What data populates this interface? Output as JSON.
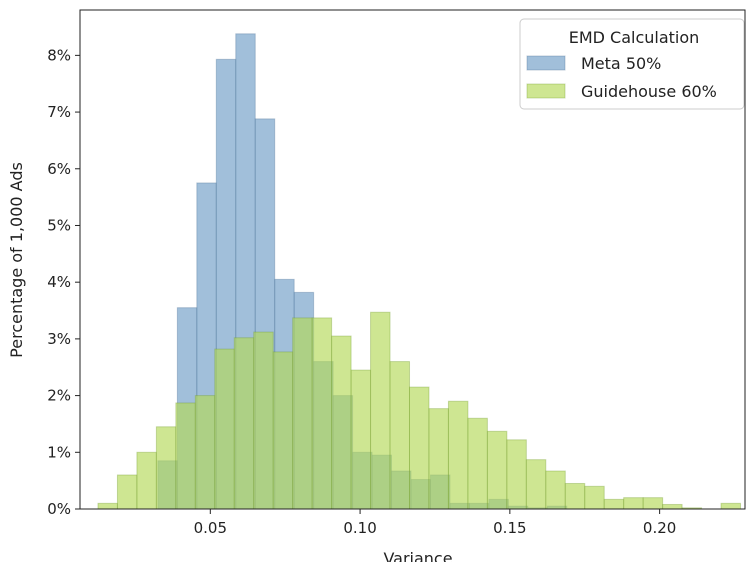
{
  "chart_data": {
    "type": "bar",
    "xlabel": "Variance",
    "ylabel": "Percentage of 1,000 Ads",
    "xlim": [
      0.0065,
      0.2285
    ],
    "ylim": [
      0,
      8.8
    ],
    "xticks": [
      {
        "value": 0.05,
        "label": "0.05"
      },
      {
        "value": 0.1,
        "label": "0.10"
      },
      {
        "value": 0.15,
        "label": "0.15"
      },
      {
        "value": 0.2,
        "label": "0.20"
      }
    ],
    "yticks": [
      {
        "value": 0,
        "label": "0%"
      },
      {
        "value": 1,
        "label": "1%"
      },
      {
        "value": 2,
        "label": "2%"
      },
      {
        "value": 3,
        "label": "3%"
      },
      {
        "value": 4,
        "label": "4%"
      },
      {
        "value": 5,
        "label": "5%"
      },
      {
        "value": 6,
        "label": "6%"
      },
      {
        "value": 7,
        "label": "7%"
      },
      {
        "value": 8,
        "label": "8%"
      }
    ],
    "bin_width": 0.0065,
    "legend": {
      "title": "EMD Calculation",
      "position": "top-right"
    },
    "series": [
      {
        "name": "Meta 50%",
        "color": "#6f9dc6",
        "bins": [
          [
            0.0325,
            0.85
          ],
          [
            0.039,
            3.55
          ],
          [
            0.0455,
            5.75
          ],
          [
            0.052,
            7.93
          ],
          [
            0.0585,
            8.38
          ],
          [
            0.065,
            6.88
          ],
          [
            0.0715,
            4.05
          ],
          [
            0.078,
            3.82
          ],
          [
            0.0845,
            2.6
          ],
          [
            0.091,
            2.0
          ],
          [
            0.0975,
            1.0
          ],
          [
            0.104,
            0.95
          ],
          [
            0.1105,
            0.67
          ],
          [
            0.117,
            0.52
          ],
          [
            0.1235,
            0.6
          ],
          [
            0.13,
            0.1
          ],
          [
            0.1365,
            0.1
          ],
          [
            0.143,
            0.17
          ],
          [
            0.1495,
            0.05
          ],
          [
            0.156,
            0.02
          ],
          [
            0.1625,
            0.05
          ]
        ]
      },
      {
        "name": "Guidehouse 60%",
        "color": "#b3d957",
        "bins": [
          [
            0.0125,
            0.1
          ],
          [
            0.019,
            0.6
          ],
          [
            0.0255,
            1.0
          ],
          [
            0.032,
            1.45
          ],
          [
            0.0385,
            1.87
          ],
          [
            0.045,
            2.0
          ],
          [
            0.0515,
            2.82
          ],
          [
            0.058,
            3.02
          ],
          [
            0.0645,
            3.12
          ],
          [
            0.071,
            2.77
          ],
          [
            0.0775,
            3.37
          ],
          [
            0.084,
            3.37
          ],
          [
            0.0905,
            3.05
          ],
          [
            0.097,
            2.45
          ],
          [
            0.1035,
            3.47
          ],
          [
            0.11,
            2.6
          ],
          [
            0.1165,
            2.15
          ],
          [
            0.123,
            1.77
          ],
          [
            0.1295,
            1.9
          ],
          [
            0.136,
            1.6
          ],
          [
            0.1425,
            1.37
          ],
          [
            0.149,
            1.22
          ],
          [
            0.1555,
            0.87
          ],
          [
            0.162,
            0.67
          ],
          [
            0.1685,
            0.45
          ],
          [
            0.175,
            0.4
          ],
          [
            0.1815,
            0.17
          ],
          [
            0.188,
            0.2
          ],
          [
            0.1945,
            0.2
          ],
          [
            0.201,
            0.08
          ],
          [
            0.2075,
            0.02
          ],
          [
            0.214,
            0.0
          ],
          [
            0.2205,
            0.1
          ]
        ]
      }
    ]
  }
}
